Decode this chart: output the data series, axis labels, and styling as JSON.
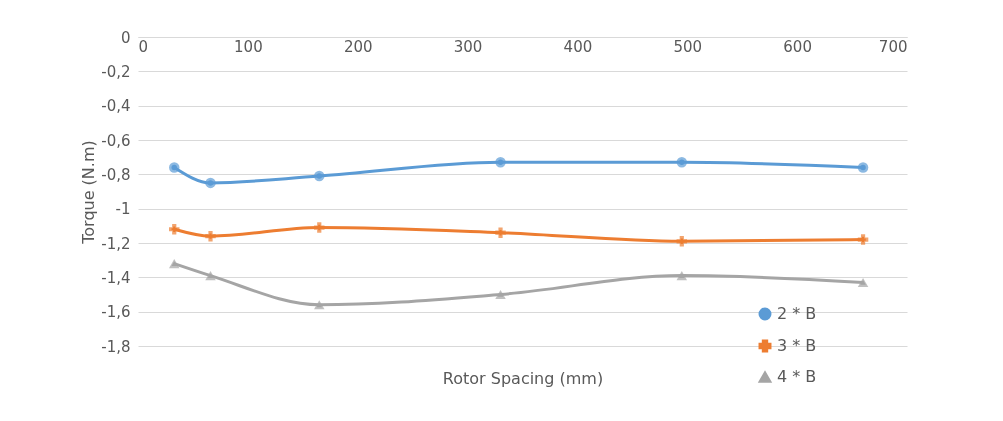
{
  "chart_data": {
    "type": "line",
    "xlabel": "Rotor Spacing (mm)",
    "ylabel": "Torque (N.m)",
    "x": [
      33,
      66,
      165,
      330,
      495,
      660
    ],
    "series": [
      {
        "name": "2 * B",
        "color": "#5b9bd5",
        "marker": "circle",
        "values": [
          -0.76,
          -0.85,
          -0.81,
          -0.73,
          -0.73,
          -0.76
        ]
      },
      {
        "name": "3 * B",
        "color": "#ed7d31",
        "marker": "cross",
        "values": [
          -1.12,
          -1.16,
          -1.11,
          -1.14,
          -1.19,
          -1.18
        ]
      },
      {
        "name": "4 * B",
        "color": "#a5a5a5",
        "marker": "triangle",
        "values": [
          -1.32,
          -1.39,
          -1.56,
          -1.5,
          -1.39,
          -1.43
        ]
      }
    ],
    "xlim": [
      0,
      700
    ],
    "xticks": [
      0,
      100,
      200,
      300,
      400,
      500,
      600,
      700
    ],
    "ylim": [
      -1.8,
      0
    ],
    "yticks": [
      0,
      {
        "value": -0.2,
        "label": "-0,2"
      },
      {
        "value": -0.4,
        "label": "-0,4"
      },
      {
        "value": -0.6,
        "label": "-0,6"
      },
      {
        "value": -0.8,
        "label": "-0,8"
      },
      -1,
      {
        "value": -1.2,
        "label": "-1,2"
      },
      {
        "value": -1.4,
        "label": "-1,4"
      },
      {
        "value": -1.6,
        "label": "-1,6"
      },
      {
        "value": -1.8,
        "label": "-1,8"
      }
    ],
    "grid": "y",
    "legend": "bottom right",
    "line_style": "solid"
  }
}
